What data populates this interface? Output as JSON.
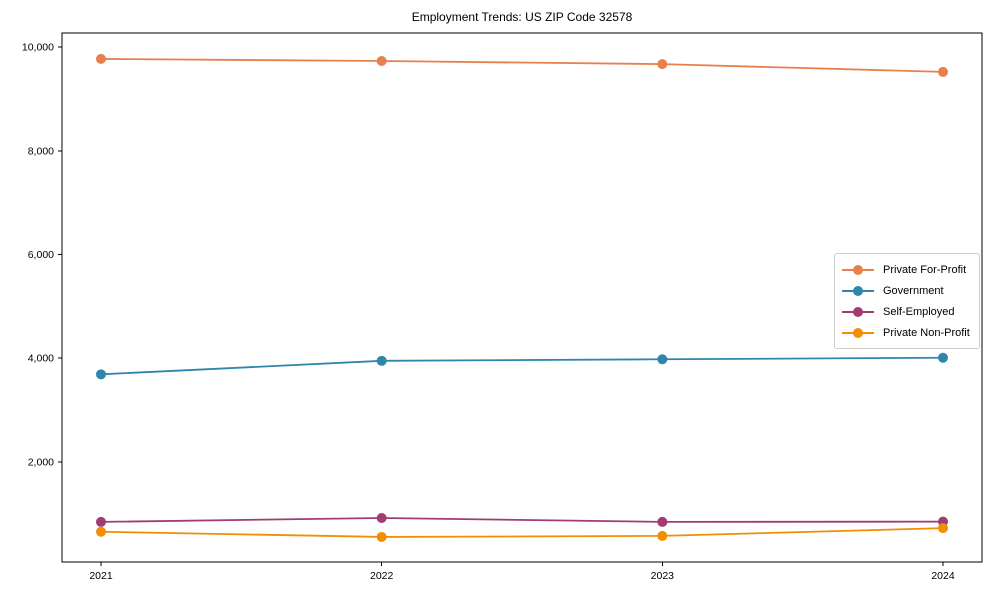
{
  "chart_data": {
    "type": "line",
    "title": "Employment Trends: US ZIP Code 32578",
    "xlabel": "",
    "ylabel": "",
    "x_tick_labels": [
      "2021",
      "2022",
      "2023",
      "2024"
    ],
    "x": [
      2021,
      2022,
      2023,
      2024
    ],
    "series": [
      {
        "name": "Private For-Profit",
        "color": "#E8804C",
        "values": [
          9770,
          9730,
          9670,
          9520
        ]
      },
      {
        "name": "Government",
        "color": "#2E86AB",
        "values": [
          3690,
          3950,
          3980,
          4010
        ]
      },
      {
        "name": "Self-Employed",
        "color": "#A23B72",
        "values": [
          845,
          920,
          845,
          850
        ]
      },
      {
        "name": "Private Non-Profit",
        "color": "#F18F01",
        "values": [
          655,
          555,
          575,
          725
        ]
      }
    ],
    "y_ticks": [
      {
        "value": 2000,
        "label": "2,000"
      },
      {
        "value": 4000,
        "label": "4,000"
      },
      {
        "value": 6000,
        "label": "6,000"
      },
      {
        "value": 8000,
        "label": "8,000"
      },
      {
        "value": 10000,
        "label": "10,000"
      }
    ],
    "ylim": [
      72,
      10270
    ],
    "grid": false,
    "legend_position": "center-right",
    "axis_color": "#000000",
    "background_color": "#ffffff"
  }
}
